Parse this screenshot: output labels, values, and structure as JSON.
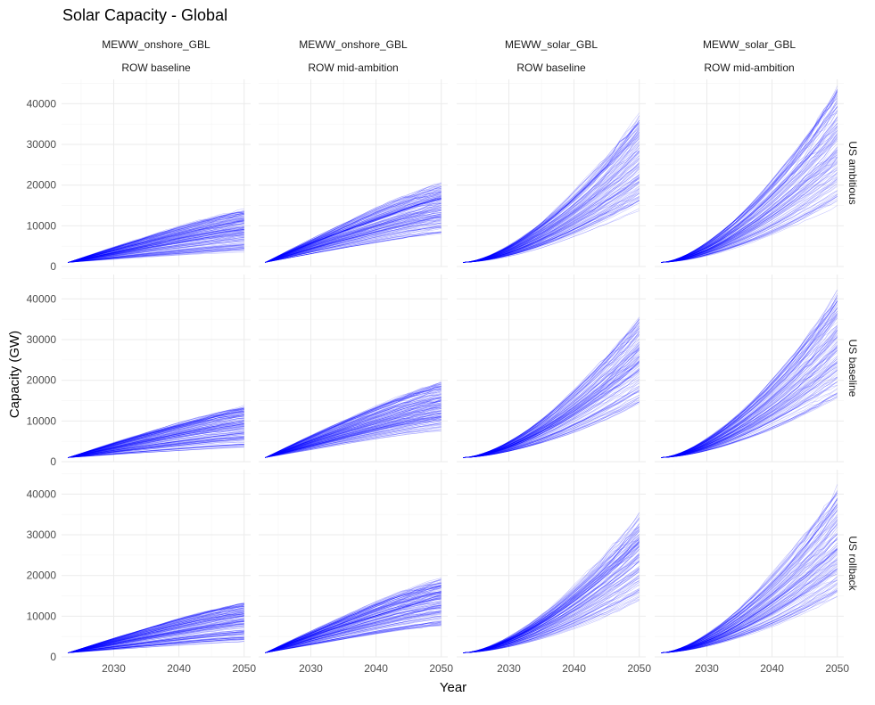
{
  "chart_data": {
    "type": "line",
    "title": "Solar Capacity - Global",
    "xlabel": "Year",
    "ylabel": "Capacity (GW)",
    "x_range": [
      2023,
      2050
    ],
    "xlim": [
      2022,
      2051
    ],
    "ylim": [
      0,
      46000
    ],
    "x_ticks": [
      2030,
      2040,
      2050
    ],
    "y_ticks": [
      0,
      10000,
      20000,
      30000,
      40000
    ],
    "grid": true,
    "line_color": "#0000ff",
    "columns": [
      {
        "strip_1": "MEWW_onshore_GBL",
        "strip_2": "ROW baseline"
      },
      {
        "strip_1": "MEWW_onshore_GBL",
        "strip_2": "ROW mid-ambition"
      },
      {
        "strip_1": "MEWW_solar_GBL",
        "strip_2": "ROW baseline"
      },
      {
        "strip_1": "MEWW_solar_GBL",
        "strip_2": "ROW mid-ambition"
      }
    ],
    "rows": [
      "US ambitious",
      "US baseline",
      "US rollback"
    ],
    "panel_ranges": [
      {
        "column": 0,
        "start": 1000,
        "end_2050_min": 3500,
        "end_2050_max": 14000
      },
      {
        "column": 1,
        "start": 1000,
        "end_2050_min": 8000,
        "end_2050_max": 20500
      },
      {
        "column": 2,
        "start": 1000,
        "end_2050_min": 14000,
        "end_2050_max": 37000
      },
      {
        "column": 3,
        "start": 1000,
        "end_2050_min": 15000,
        "end_2050_max": 43000
      }
    ]
  }
}
